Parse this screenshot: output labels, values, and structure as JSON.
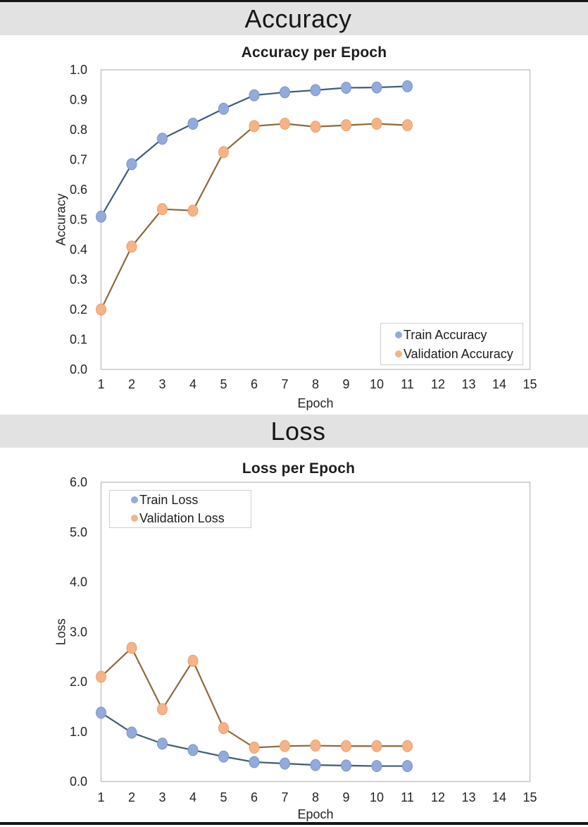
{
  "sections": [
    {
      "header": "Accuracy"
    },
    {
      "header": "Loss"
    }
  ],
  "chart_data": [
    {
      "type": "line",
      "title": "Accuracy per Epoch",
      "xlabel": "Epoch",
      "ylabel": "Accuracy",
      "x": [
        1,
        2,
        3,
        4,
        5,
        6,
        7,
        8,
        9,
        10,
        11
      ],
      "x_ticks": [
        "1",
        "2",
        "3",
        "4",
        "5",
        "6",
        "7",
        "8",
        "9",
        "10",
        "11",
        "12",
        "13",
        "14",
        "15"
      ],
      "xlim": [
        1,
        15
      ],
      "y_ticks": [
        "0.0",
        "0.1",
        "0.2",
        "0.3",
        "0.4",
        "0.5",
        "0.6",
        "0.7",
        "0.8",
        "0.9",
        "1.0"
      ],
      "ylim": [
        0,
        1
      ],
      "grid": false,
      "legend_position": "bottom-right",
      "series": [
        {
          "name": "Train Accuracy",
          "marker_color": "#92abdc",
          "marker_edge": "#7b94c6",
          "line_color": "#3e5c7a",
          "values": [
            0.51,
            0.685,
            0.77,
            0.82,
            0.87,
            0.915,
            0.925,
            0.932,
            0.94,
            0.941,
            0.945
          ]
        },
        {
          "name": "Validation Accuracy",
          "marker_color": "#f6b387",
          "marker_edge": "#e9a069",
          "line_color": "#8d6a3c",
          "values": [
            0.2,
            0.41,
            0.535,
            0.53,
            0.725,
            0.812,
            0.82,
            0.81,
            0.815,
            0.82,
            0.815
          ]
        }
      ]
    },
    {
      "type": "line",
      "title": "Loss per Epoch",
      "xlabel": "Epoch",
      "ylabel": "Loss",
      "x": [
        1,
        2,
        3,
        4,
        5,
        6,
        7,
        8,
        9,
        10,
        11
      ],
      "x_ticks": [
        "1",
        "2",
        "3",
        "4",
        "5",
        "6",
        "7",
        "8",
        "9",
        "10",
        "11",
        "12",
        "13",
        "14",
        "15"
      ],
      "xlim": [
        1,
        15
      ],
      "y_ticks": [
        "0.0",
        "1.0",
        "2.0",
        "3.0",
        "4.0",
        "5.0",
        "6.0"
      ],
      "ylim": [
        0,
        6
      ],
      "grid": false,
      "legend_position": "top-left",
      "series": [
        {
          "name": "Train Loss",
          "marker_color": "#92abdc",
          "marker_edge": "#7b94c6",
          "line_color": "#3e5c7a",
          "values": [
            1.38,
            0.98,
            0.76,
            0.63,
            0.5,
            0.39,
            0.36,
            0.33,
            0.32,
            0.31,
            0.31
          ]
        },
        {
          "name": "Validation Loss",
          "marker_color": "#f6b387",
          "marker_edge": "#e9a069",
          "line_color": "#8d6a3c",
          "values": [
            2.1,
            2.68,
            1.45,
            2.42,
            1.07,
            0.68,
            0.71,
            0.72,
            0.71,
            0.71,
            0.71
          ]
        }
      ]
    }
  ]
}
